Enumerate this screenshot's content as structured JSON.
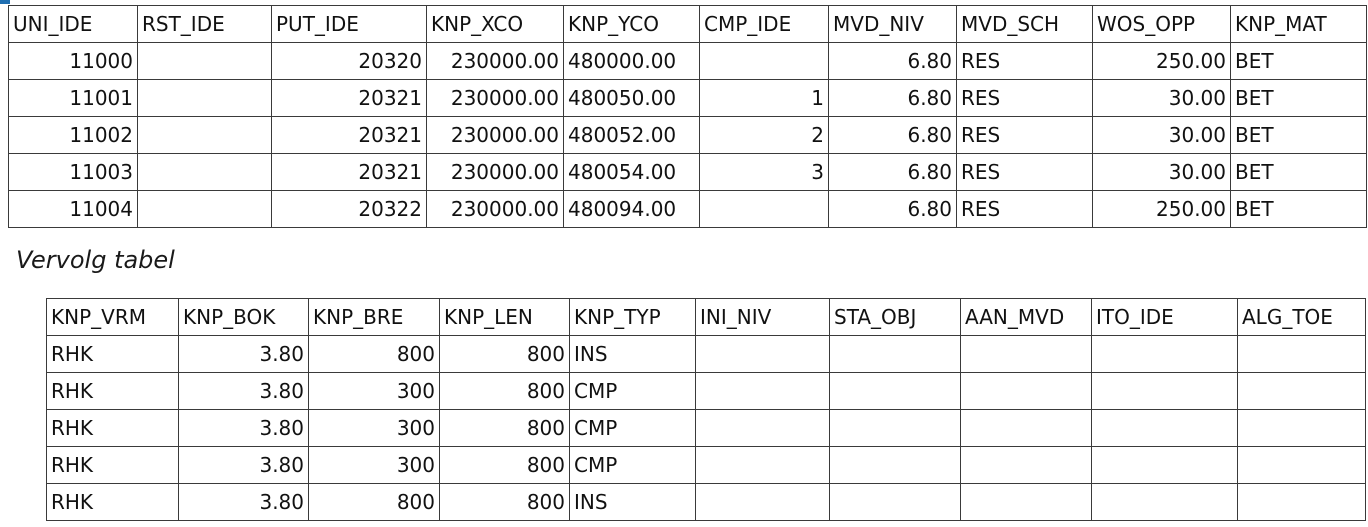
{
  "table1": {
    "headers": [
      "UNI_IDE",
      "RST_IDE",
      "PUT_IDE",
      "KNP_XCO",
      "KNP_YCO",
      "CMP_IDE",
      "MVD_NIV",
      "MVD_SCH",
      "WOS_OPP",
      "KNP_MAT"
    ],
    "rows": [
      [
        "11000",
        "",
        "20320",
        "230000.00",
        "480000.00",
        "",
        "6.80",
        "RES",
        "250.00",
        "BET"
      ],
      [
        "11001",
        "",
        "20321",
        "230000.00",
        "480050.00",
        "1",
        "6.80",
        "RES",
        "30.00",
        "BET"
      ],
      [
        "11002",
        "",
        "20321",
        "230000.00",
        "480052.00",
        "2",
        "6.80",
        "RES",
        "30.00",
        "BET"
      ],
      [
        "11003",
        "",
        "20321",
        "230000.00",
        "480054.00",
        "3",
        "6.80",
        "RES",
        "30.00",
        "BET"
      ],
      [
        "11004",
        "",
        "20322",
        "230000.00",
        "480094.00",
        "",
        "6.80",
        "RES",
        "250.00",
        "BET"
      ]
    ]
  },
  "caption": "Vervolg tabel",
  "table2": {
    "headers": [
      "KNP_VRM",
      "KNP_BOK",
      "KNP_BRE",
      "KNP_LEN",
      "KNP_TYP",
      "INI_NIV",
      "STA_OBJ",
      "AAN_MVD",
      "ITO_IDE",
      "ALG_TOE"
    ],
    "rows": [
      [
        "RHK",
        "3.80",
        "800",
        "800",
        "INS",
        "",
        "",
        "",
        "",
        ""
      ],
      [
        "RHK",
        "3.80",
        "300",
        "800",
        "CMP",
        "",
        "",
        "",
        "",
        ""
      ],
      [
        "RHK",
        "3.80",
        "300",
        "800",
        "CMP",
        "",
        "",
        "",
        "",
        ""
      ],
      [
        "RHK",
        "3.80",
        "300",
        "800",
        "CMP",
        "",
        "",
        "",
        "",
        ""
      ],
      [
        "RHK",
        "3.80",
        "800",
        "800",
        "INS",
        "",
        "",
        "",
        "",
        ""
      ]
    ]
  },
  "colors": {
    "border": "#3a3a3a",
    "text": "#111111",
    "accent": "#1f6fb2"
  }
}
